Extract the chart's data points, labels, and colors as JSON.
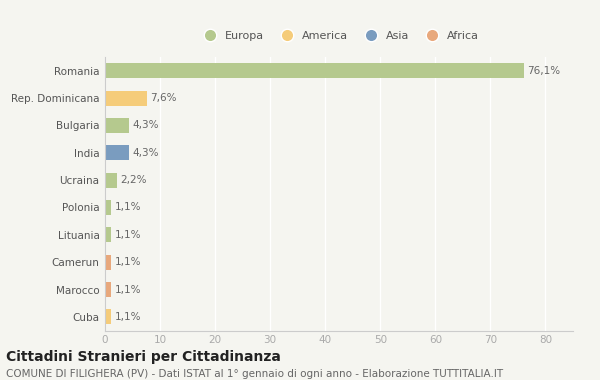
{
  "categories": [
    "Romania",
    "Rep. Dominicana",
    "Bulgaria",
    "India",
    "Ucraina",
    "Polonia",
    "Lituania",
    "Camerun",
    "Marocco",
    "Cuba"
  ],
  "values": [
    76.1,
    7.6,
    4.3,
    4.3,
    2.2,
    1.1,
    1.1,
    1.1,
    1.1,
    1.1
  ],
  "labels": [
    "76,1%",
    "7,6%",
    "4,3%",
    "4,3%",
    "2,2%",
    "1,1%",
    "1,1%",
    "1,1%",
    "1,1%",
    "1,1%"
  ],
  "colors": [
    "#b5c98e",
    "#f5cc7a",
    "#b5c98e",
    "#7a9cbf",
    "#b5c98e",
    "#b5c98e",
    "#b5c98e",
    "#e8a87c",
    "#e8a87c",
    "#f5cc7a"
  ],
  "legend": [
    {
      "label": "Europa",
      "color": "#b5c98e"
    },
    {
      "label": "America",
      "color": "#f5cc7a"
    },
    {
      "label": "Asia",
      "color": "#7a9cbf"
    },
    {
      "label": "Africa",
      "color": "#e8a87c"
    }
  ],
  "xlim": [
    0,
    85
  ],
  "xticks": [
    0,
    10,
    20,
    30,
    40,
    50,
    60,
    70,
    80
  ],
  "background_color": "#f5f5f0",
  "grid_color": "#ffffff",
  "title": "Cittadini Stranieri per Cittadinanza",
  "subtitle": "COMUNE DI FILIGHERA (PV) - Dati ISTAT al 1° gennaio di ogni anno - Elaborazione TUTTITALIA.IT",
  "title_fontsize": 10,
  "subtitle_fontsize": 7.5,
  "label_fontsize": 7.5,
  "ytick_fontsize": 7.5,
  "xtick_fontsize": 7.5,
  "legend_fontsize": 8,
  "bar_height": 0.55
}
